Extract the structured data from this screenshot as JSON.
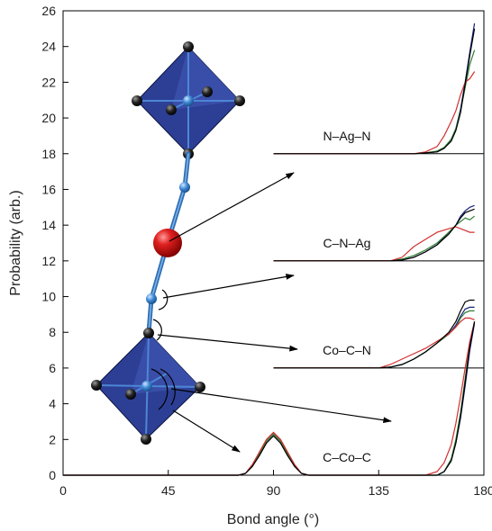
{
  "chart_data": {
    "type": "line",
    "xlabel": "Bond angle (°)",
    "ylabel": "Probability (arb.)",
    "xlim": [
      0,
      180
    ],
    "ylim": [
      0,
      26
    ],
    "xticks": [
      "0",
      "45",
      "90",
      "135",
      "180"
    ],
    "yticks": [
      "0",
      "2",
      "4",
      "6",
      "8",
      "10",
      "12",
      "14",
      "16",
      "18",
      "20",
      "22",
      "24",
      "26"
    ],
    "grid": false,
    "legend": "none",
    "panels": [
      {
        "label": "N–Ag–N",
        "baseline": 18,
        "x_start": 90,
        "series": [
          {
            "color": "#1a237e",
            "x": [
              150,
              155,
              160,
              163,
              166,
              168,
              170,
              172,
              174,
              176
            ],
            "y": [
              18.0,
              18.05,
              18.1,
              18.3,
              18.8,
              19.4,
              20.5,
              22.0,
              23.7,
              25.3
            ]
          },
          {
            "color": "#2e7d32",
            "x": [
              150,
              155,
              160,
              163,
              166,
              168,
              170,
              172,
              174,
              176
            ],
            "y": [
              18.0,
              18.05,
              18.15,
              18.35,
              18.8,
              19.4,
              20.4,
              21.7,
              23.0,
              23.8
            ]
          },
          {
            "color": "#d32f2f",
            "x": [
              150,
              155,
              160,
              163,
              166,
              168,
              170,
              172,
              174,
              176
            ],
            "y": [
              18.0,
              18.1,
              18.4,
              19.0,
              19.8,
              20.4,
              21.3,
              22.0,
              22.2,
              22.6
            ]
          },
          {
            "color": "#000000",
            "x": [
              150,
              155,
              160,
              163,
              166,
              168,
              170,
              172,
              174,
              176
            ],
            "y": [
              18.0,
              18.05,
              18.1,
              18.3,
              18.7,
              19.3,
              20.3,
              21.9,
              23.5,
              25.0
            ]
          }
        ]
      },
      {
        "label": "C–N–Ag",
        "baseline": 12,
        "x_start": 90,
        "series": [
          {
            "color": "#1a237e",
            "x": [
              140,
              145,
              150,
              155,
              160,
              165,
              168,
              170,
              172,
              174,
              176
            ],
            "y": [
              12.0,
              12.05,
              12.2,
              12.5,
              12.9,
              13.6,
              14.0,
              14.5,
              14.8,
              15.0,
              15.1
            ]
          },
          {
            "color": "#2e7d32",
            "x": [
              140,
              145,
              150,
              155,
              160,
              165,
              168,
              170,
              172,
              174,
              176
            ],
            "y": [
              12.0,
              12.1,
              12.3,
              12.6,
              13.0,
              13.6,
              14.0,
              14.2,
              14.4,
              14.3,
              14.5
            ]
          },
          {
            "color": "#d32f2f",
            "x": [
              140,
              145,
              150,
              155,
              160,
              165,
              168,
              170,
              172,
              174,
              176
            ],
            "y": [
              12.0,
              12.2,
              12.8,
              13.2,
              13.6,
              13.8,
              13.9,
              13.8,
              13.7,
              13.6,
              13.6
            ]
          },
          {
            "color": "#000000",
            "x": [
              140,
              145,
              150,
              155,
              160,
              165,
              168,
              170,
              172,
              174,
              176
            ],
            "y": [
              12.0,
              12.05,
              12.2,
              12.5,
              12.9,
              13.5,
              14.0,
              14.4,
              14.7,
              14.8,
              14.9
            ]
          }
        ]
      },
      {
        "label": "Co–C–N",
        "baseline": 6,
        "x_start": 90,
        "series": [
          {
            "color": "#1a237e",
            "x": [
              135,
              140,
              145,
              150,
              155,
              160,
              165,
              168,
              170,
              172,
              174,
              176
            ],
            "y": [
              6.0,
              6.05,
              6.2,
              6.5,
              6.9,
              7.4,
              7.9,
              8.4,
              8.9,
              9.3,
              9.4,
              9.4
            ]
          },
          {
            "color": "#2e7d32",
            "x": [
              135,
              140,
              145,
              150,
              155,
              160,
              165,
              168,
              170,
              172,
              174,
              176
            ],
            "y": [
              6.0,
              6.05,
              6.2,
              6.5,
              6.9,
              7.4,
              7.9,
              8.3,
              8.8,
              9.1,
              9.2,
              9.2
            ]
          },
          {
            "color": "#d32f2f",
            "x": [
              135,
              140,
              145,
              150,
              155,
              160,
              165,
              168,
              170,
              172,
              174,
              176
            ],
            "y": [
              6.0,
              6.2,
              6.5,
              6.8,
              7.1,
              7.5,
              7.9,
              8.3,
              8.6,
              8.8,
              8.8,
              8.7
            ]
          },
          {
            "color": "#000000",
            "x": [
              135,
              140,
              145,
              150,
              155,
              160,
              165,
              168,
              170,
              172,
              174,
              176
            ],
            "y": [
              6.0,
              6.05,
              6.2,
              6.5,
              6.9,
              7.4,
              8.0,
              8.6,
              9.2,
              9.7,
              9.8,
              9.8
            ]
          }
        ]
      },
      {
        "label": "C–Co–C",
        "baseline": 0,
        "x_start": 0,
        "series": [
          {
            "color": "#1a237e",
            "x": [
              75,
              78,
              81,
              84,
              87,
              90,
              93,
              96,
              99,
              102,
              105,
              160,
              163,
              166,
              168,
              170,
              172,
              174,
              176
            ],
            "y": [
              0,
              0.1,
              0.5,
              1.2,
              1.9,
              2.3,
              1.9,
              1.2,
              0.5,
              0.1,
              0,
              0,
              0.2,
              0.8,
              1.8,
              3.2,
              5.0,
              7.0,
              8.5
            ]
          },
          {
            "color": "#2e7d32",
            "x": [
              75,
              78,
              81,
              84,
              87,
              90,
              93,
              96,
              99,
              102,
              105,
              160,
              163,
              166,
              168,
              170,
              172,
              174,
              176
            ],
            "y": [
              0,
              0.1,
              0.5,
              1.2,
              1.9,
              2.3,
              1.9,
              1.2,
              0.5,
              0.1,
              0,
              0,
              0.2,
              0.9,
              2.0,
              3.5,
              5.4,
              7.4,
              8.6
            ]
          },
          {
            "color": "#d32f2f",
            "x": [
              75,
              78,
              81,
              84,
              87,
              90,
              93,
              96,
              99,
              102,
              105,
              155,
              160,
              163,
              166,
              168,
              170,
              172,
              174,
              176
            ],
            "y": [
              0,
              0.1,
              0.6,
              1.3,
              2.0,
              2.4,
              2.0,
              1.3,
              0.6,
              0.1,
              0,
              0,
              0.2,
              0.7,
              1.7,
              2.9,
              4.4,
              6.0,
              7.5,
              8.6
            ]
          },
          {
            "color": "#000000",
            "x": [
              75,
              78,
              81,
              84,
              87,
              90,
              93,
              96,
              99,
              102,
              105,
              160,
              163,
              166,
              168,
              170,
              172,
              174,
              176
            ],
            "y": [
              0,
              0.1,
              0.5,
              1.1,
              1.8,
              2.2,
              1.8,
              1.1,
              0.5,
              0.1,
              0,
              0,
              0.2,
              0.8,
              1.8,
              3.3,
              5.2,
              7.2,
              8.6
            ]
          }
        ]
      }
    ]
  }
}
